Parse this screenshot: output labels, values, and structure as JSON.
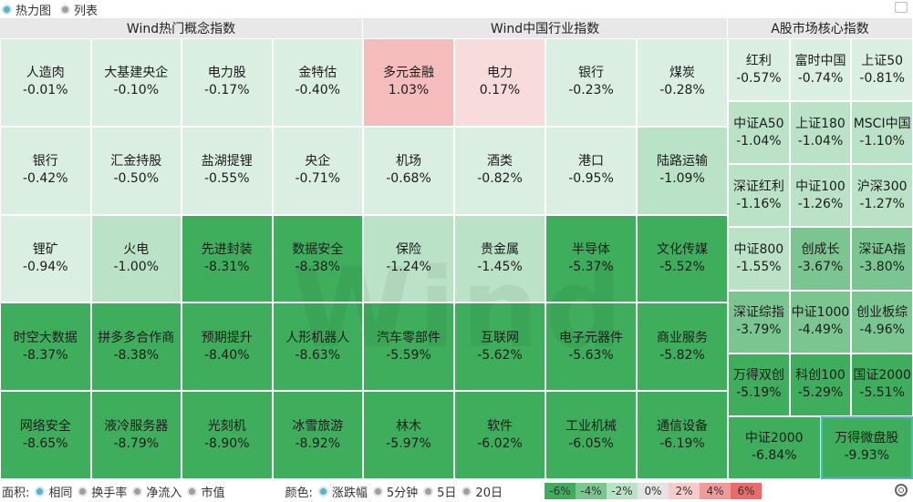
{
  "view_tabs": [
    {
      "label": "热力图",
      "selected": true
    },
    {
      "label": "列表",
      "selected": false
    }
  ],
  "sections": [
    {
      "title": "Wind热门概念指数",
      "tiles": [
        {
          "name": "人造肉",
          "pct": "-0.01%",
          "color": "#dbeee2"
        },
        {
          "name": "大基建央企",
          "pct": "-0.10%",
          "color": "#dbeee2"
        },
        {
          "name": "电力股",
          "pct": "-0.17%",
          "color": "#dbeee2"
        },
        {
          "name": "金特估",
          "pct": "-0.40%",
          "color": "#dbeee2"
        },
        {
          "name": "银行",
          "pct": "-0.42%",
          "color": "#dbeee2"
        },
        {
          "name": "汇金持股",
          "pct": "-0.50%",
          "color": "#dbeee2"
        },
        {
          "name": "盐湖提锂",
          "pct": "-0.55%",
          "color": "#dbeee2"
        },
        {
          "name": "央企",
          "pct": "-0.71%",
          "color": "#dbeee2"
        },
        {
          "name": "锂矿",
          "pct": "-0.94%",
          "color": "#dbeee2"
        },
        {
          "name": "火电",
          "pct": "-1.00%",
          "color": "#b9e2c6"
        },
        {
          "name": "先进封装",
          "pct": "-8.31%",
          "color": "#3fae5c"
        },
        {
          "name": "数据安全",
          "pct": "-8.38%",
          "color": "#3fae5c"
        },
        {
          "name": "时空大数据",
          "pct": "-8.37%",
          "color": "#3fae5c"
        },
        {
          "name": "拼多多合作商",
          "pct": "-8.38%",
          "color": "#3fae5c"
        },
        {
          "name": "预期提升",
          "pct": "-8.40%",
          "color": "#3fae5c"
        },
        {
          "name": "人形机器人",
          "pct": "-8.63%",
          "color": "#3fae5c"
        },
        {
          "name": "网络安全",
          "pct": "-8.65%",
          "color": "#3fae5c"
        },
        {
          "name": "液冷服务器",
          "pct": "-8.79%",
          "color": "#3fae5c"
        },
        {
          "name": "光刻机",
          "pct": "-8.90%",
          "color": "#3fae5c"
        },
        {
          "name": "冰雪旅游",
          "pct": "-8.92%",
          "color": "#3fae5c"
        }
      ]
    },
    {
      "title": "Wind中国行业指数",
      "tiles": [
        {
          "name": "多元金融",
          "pct": "1.03%",
          "color": "#f4bcbc"
        },
        {
          "name": "电力",
          "pct": "0.17%",
          "color": "#f8dcdc"
        },
        {
          "name": "银行",
          "pct": "-0.23%",
          "color": "#dbeee2"
        },
        {
          "name": "煤炭",
          "pct": "-0.28%",
          "color": "#dbeee2"
        },
        {
          "name": "机场",
          "pct": "-0.68%",
          "color": "#dbeee2"
        },
        {
          "name": "酒类",
          "pct": "-0.82%",
          "color": "#dbeee2"
        },
        {
          "name": "港口",
          "pct": "-0.95%",
          "color": "#dbeee2"
        },
        {
          "name": "陆路运输",
          "pct": "-1.09%",
          "color": "#b9e2c6"
        },
        {
          "name": "保险",
          "pct": "-1.24%",
          "color": "#b9e2c6"
        },
        {
          "name": "贵金属",
          "pct": "-1.45%",
          "color": "#b9e2c6"
        },
        {
          "name": "半导体",
          "pct": "-5.37%",
          "color": "#3fae5c"
        },
        {
          "name": "文化传媒",
          "pct": "-5.52%",
          "color": "#3fae5c"
        },
        {
          "name": "汽车零部件",
          "pct": "-5.59%",
          "color": "#3fae5c"
        },
        {
          "name": "互联网",
          "pct": "-5.62%",
          "color": "#3fae5c"
        },
        {
          "name": "电子元器件",
          "pct": "-5.63%",
          "color": "#3fae5c"
        },
        {
          "name": "商业服务",
          "pct": "-5.82%",
          "color": "#3fae5c"
        },
        {
          "name": "林木",
          "pct": "-5.97%",
          "color": "#3fae5c"
        },
        {
          "name": "软件",
          "pct": "-6.02%",
          "color": "#3fae5c"
        },
        {
          "name": "工业机械",
          "pct": "-6.05%",
          "color": "#3fae5c"
        },
        {
          "name": "通信设备",
          "pct": "-6.19%",
          "color": "#3fae5c"
        }
      ]
    },
    {
      "title": "A股市场核心指数",
      "tiles": [
        {
          "name": "红利",
          "pct": "-0.57%",
          "color": "#dbeee2"
        },
        {
          "name": "富时中国",
          "pct": "-0.74%",
          "color": "#dbeee2"
        },
        {
          "name": "上证50",
          "pct": "-0.81%",
          "color": "#dbeee2"
        },
        {
          "name": "中证A50",
          "pct": "-1.04%",
          "color": "#b9e2c6"
        },
        {
          "name": "上证180",
          "pct": "-1.04%",
          "color": "#b9e2c6"
        },
        {
          "name": "MSCI中国",
          "pct": "-1.10%",
          "color": "#b9e2c6"
        },
        {
          "name": "深证红利",
          "pct": "-1.16%",
          "color": "#b9e2c6"
        },
        {
          "name": "中证100",
          "pct": "-1.26%",
          "color": "#b9e2c6"
        },
        {
          "name": "沪深300",
          "pct": "-1.27%",
          "color": "#b9e2c6"
        },
        {
          "name": "中证800",
          "pct": "-1.55%",
          "color": "#b9e2c6"
        },
        {
          "name": "创成长",
          "pct": "-3.67%",
          "color": "#7bc690"
        },
        {
          "name": "深证A指",
          "pct": "-3.80%",
          "color": "#7bc690"
        },
        {
          "name": "深证综指",
          "pct": "-3.79%",
          "color": "#7bc690"
        },
        {
          "name": "中证1000",
          "pct": "-4.49%",
          "color": "#7bc690"
        },
        {
          "name": "创业板综",
          "pct": "-4.96%",
          "color": "#7bc690"
        },
        {
          "name": "万得双创",
          "pct": "-5.19%",
          "color": "#3fae5c"
        },
        {
          "name": "科创100",
          "pct": "-5.29%",
          "color": "#3fae5c"
        },
        {
          "name": "国证2000",
          "pct": "-5.51%",
          "color": "#3fae5c"
        },
        {
          "name": "中证2000",
          "pct": "-6.84%",
          "color": "#3fae5c"
        },
        {
          "name": "万得微盘股",
          "pct": "-9.93%",
          "color": "#3fae5c"
        }
      ]
    }
  ],
  "bottom": {
    "area_label": "面积:",
    "area_options": [
      {
        "label": "相同",
        "selected": true
      },
      {
        "label": "换手率",
        "selected": false
      },
      {
        "label": "净流入",
        "selected": false
      },
      {
        "label": "市值",
        "selected": false
      }
    ],
    "color_label": "颜色:",
    "color_options": [
      {
        "label": "涨跌幅",
        "selected": true
      },
      {
        "label": "5分钟",
        "selected": false
      },
      {
        "label": "5日",
        "selected": false
      },
      {
        "label": "20日",
        "selected": false
      }
    ],
    "legend": [
      {
        "label": "-6%",
        "color": "#3fae5c"
      },
      {
        "label": "-4%",
        "color": "#7bc690"
      },
      {
        "label": "-2%",
        "color": "#b9e2c6"
      },
      {
        "label": "0%",
        "color": "#e4e4e4"
      },
      {
        "label": "2%",
        "color": "#f8caca"
      },
      {
        "label": "4%",
        "color": "#f29a9a"
      },
      {
        "label": "6%",
        "color": "#ec6a6a"
      }
    ]
  }
}
